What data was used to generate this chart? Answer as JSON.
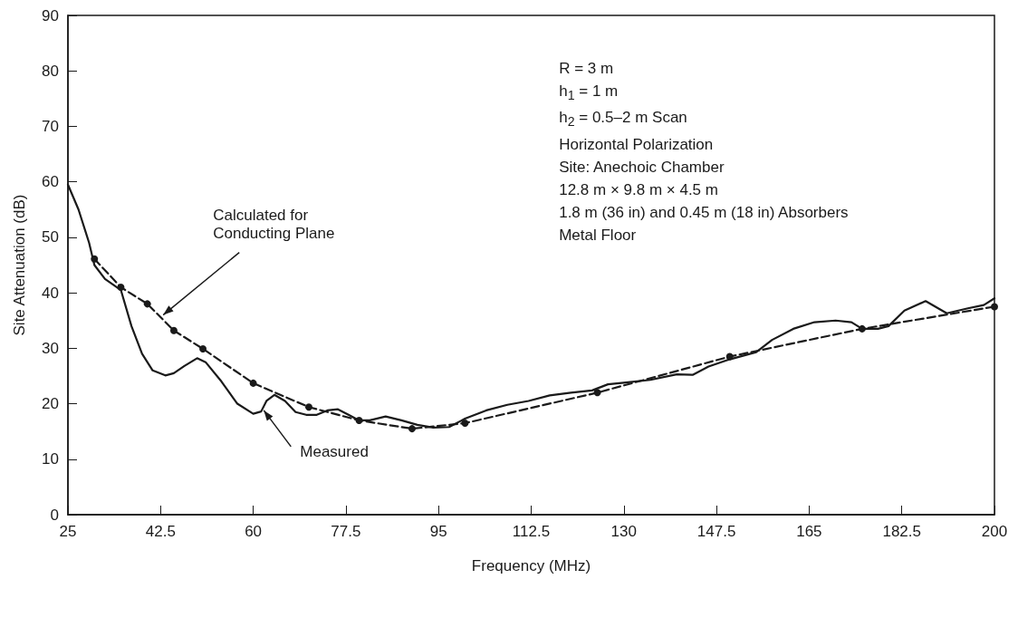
{
  "chart_data": {
    "type": "line",
    "xlabel": "Frequency (MHz)",
    "ylabel": "Site Attenuation (dB)",
    "xlim": [
      25,
      200
    ],
    "xticks": [
      25,
      42.5,
      60,
      77.5,
      95,
      112.5,
      130,
      147.5,
      165,
      182.5,
      200
    ],
    "ylim": [
      0,
      90
    ],
    "yticks": [
      0,
      10,
      20,
      30,
      40,
      50,
      60,
      70,
      80,
      90
    ],
    "grid": false,
    "series": [
      {
        "color": "#1a1a1a",
        "marker": "none",
        "line_style": "solid",
        "x": [
          25,
          27,
          29,
          30,
          32,
          35,
          37,
          39,
          41,
          43.4,
          45,
          47,
          49.4,
          51,
          54,
          57,
          60,
          61.5,
          62.5,
          64,
          66,
          68,
          70,
          72,
          74,
          76,
          78,
          80,
          82,
          85,
          88,
          91,
          94,
          97,
          100,
          104,
          108,
          112,
          116,
          120,
          124,
          127,
          130,
          135,
          140,
          143,
          146,
          150,
          155,
          158,
          162,
          166,
          170,
          173,
          175,
          178,
          180,
          183,
          187,
          191,
          195,
          198,
          200
        ],
        "values": [
          59.5,
          55,
          49,
          45,
          42.5,
          40.5,
          34,
          29,
          26,
          25.1,
          25.5,
          26.8,
          28.2,
          27.5,
          24,
          20,
          18.2,
          18.6,
          20.5,
          21.6,
          20.5,
          18.5,
          18,
          18,
          18.8,
          19,
          18,
          17,
          17,
          17.7,
          17,
          16.2,
          15.7,
          15.8,
          17.3,
          18.8,
          19.8,
          20.5,
          21.5,
          22,
          22.4,
          23.5,
          23.8,
          24.3,
          25.3,
          25.2,
          26.7,
          28,
          29.3,
          31.5,
          33.5,
          34.7,
          35,
          34.7,
          33.5,
          33.5,
          34,
          36.8,
          38.5,
          36.3,
          37.2,
          37.8,
          39
        ]
      },
      {
        "color": "#1a1a1a",
        "marker": "circle",
        "line_style": "dashed",
        "x": [
          30,
          35,
          40,
          45,
          50.5,
          60,
          70.5,
          80,
          90,
          100,
          125,
          150,
          175,
          200
        ],
        "values": [
          46.1,
          41,
          38,
          33.2,
          29.9,
          23.7,
          19.4,
          17,
          15.5,
          16.5,
          22,
          28.5,
          33.5,
          37.5
        ]
      }
    ],
    "annotations": [
      {
        "text": "Calculated for\nConducting Plane",
        "x": 43,
        "y": 36
      },
      {
        "text": "Measured",
        "x": 62,
        "y": 18.8
      },
      "R = 3 m",
      "h$_{1}$ = 1 m",
      "h$_{2}$ = 0.5–2 m Scan",
      "Horizontal Polarization",
      "Site: Anechoic Chamber",
      "12.8 m × 9.8 m × 4.5 m",
      "1.8 m (36 in) and 0.45 m (18 in) Absorbers",
      "Metal Floor"
    ]
  }
}
